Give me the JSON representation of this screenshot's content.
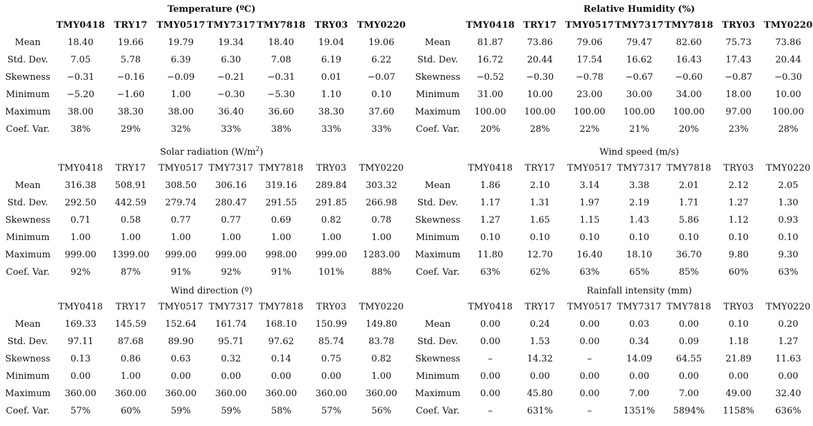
{
  "panels": [
    {
      "title": "Temperature (ºC)",
      "headers": [
        "TMY0418",
        "TRY17",
        "TMY0517",
        "TMY7317",
        "TMY7818",
        "TRY03",
        "TMY0220"
      ],
      "rows": [
        {
          "label": "Mean",
          "values": [
            "18.40",
            "19.66",
            "19.79",
            "19.34",
            "18.40",
            "19.04",
            "19.06"
          ]
        },
        {
          "label": "Std. Dev.",
          "values": [
            "7.05",
            "5.78",
            "6.39",
            "6.30",
            "7.08",
            "6.19",
            "6.22"
          ]
        },
        {
          "label": "Skewness",
          "values": [
            "−0.31",
            "−0.16",
            "−0.09",
            "−0.21",
            "−0.31",
            "0.01",
            "−0.07"
          ]
        },
        {
          "label": "Minimum",
          "values": [
            "−5.20",
            "−1.60",
            "1.00",
            "−0.30",
            "−5.30",
            "1.10",
            "0.10"
          ]
        },
        {
          "label": "Maximum",
          "values": [
            "38.00",
            "38.30",
            "38.00",
            "36.40",
            "36.60",
            "38.30",
            "37.60"
          ]
        },
        {
          "label": "Coef. Var.",
          "values": [
            "38%",
            "29%",
            "32%",
            "33%",
            "38%",
            "33%",
            "33%"
          ]
        }
      ]
    },
    {
      "title": "Relative Humidity (%)",
      "headers": [
        "TMY0418",
        "TRY17",
        "TMY0517",
        "TMY7317",
        "TMY7818",
        "TRY03",
        "TMY0220"
      ],
      "rows": [
        {
          "label": "Mean",
          "values": [
            "81.87",
            "73.86",
            "79.06",
            "79.47",
            "82.60",
            "75.73",
            "73.86"
          ]
        },
        {
          "label": "Std. Dev.",
          "values": [
            "16.72",
            "20.44",
            "17.54",
            "16.62",
            "16.43",
            "17.43",
            "20.44"
          ]
        },
        {
          "label": "Skewness",
          "values": [
            "−0.52",
            "−0.30",
            "−0.78",
            "−0.67",
            "−0.60",
            "−0.87",
            "−0.30"
          ]
        },
        {
          "label": "Minimum",
          "values": [
            "31.00",
            "10.00",
            "23.00",
            "30.00",
            "34.00",
            "18.00",
            "10.00"
          ]
        },
        {
          "label": "Maximum",
          "values": [
            "100.00",
            "100.00",
            "100.00",
            "100.00",
            "100.00",
            "97.00",
            "100.00"
          ]
        },
        {
          "label": "Coef. Var.",
          "values": [
            "20%",
            "28%",
            "22%",
            "21%",
            "20%",
            "23%",
            "28%"
          ]
        }
      ]
    },
    {
      "title": "Solar radiation (W/m",
      "title_sup": "2",
      "title_end": ")",
      "headers": [
        "TMY0418",
        "TRY17",
        "TMY0517",
        "TMY7317",
        "TMY7818",
        "TRY03",
        "TMY0220"
      ],
      "rows": [
        {
          "label": "Mean",
          "values": [
            "316.38",
            "508.91",
            "308.50",
            "306.16",
            "319.16",
            "289.84",
            "303.32"
          ]
        },
        {
          "label": "Std. Dev.",
          "values": [
            "292.50",
            "442.59",
            "279.74",
            "280.47",
            "291.55",
            "291.85",
            "266.98"
          ]
        },
        {
          "label": "Skewness",
          "values": [
            "0.71",
            "0.58",
            "0.77",
            "0.77",
            "0.69",
            "0.82",
            "0.78"
          ]
        },
        {
          "label": "Minimum",
          "values": [
            "1.00",
            "1.00",
            "1.00",
            "1.00",
            "1.00",
            "1.00",
            "1.00"
          ]
        },
        {
          "label": "Maximum",
          "values": [
            "999.00",
            "1399.00",
            "999.00",
            "999.00",
            "998.00",
            "999.00",
            "1283.00"
          ]
        },
        {
          "label": "Coef. Var.",
          "values": [
            "92%",
            "87%",
            "91%",
            "92%",
            "91%",
            "101%",
            "88%"
          ]
        }
      ]
    },
    {
      "title": "Wind speed (m/s)",
      "headers": [
        "TMY0418",
        "TRY17",
        "TMY0517",
        "TMY7317",
        "TMY7818",
        "TRY03",
        "TMY0220"
      ],
      "rows": [
        {
          "label": "Mean",
          "values": [
            "1.86",
            "2.10",
            "3.14",
            "3.38",
            "2.01",
            "2.12",
            "2.05"
          ]
        },
        {
          "label": "Std. Dev.",
          "values": [
            "1.17",
            "1.31",
            "1.97",
            "2.19",
            "1.71",
            "1.27",
            "1.30"
          ]
        },
        {
          "label": "Skewness",
          "values": [
            "1.27",
            "1.65",
            "1.15",
            "1.43",
            "5.86",
            "1.12",
            "0.93"
          ]
        },
        {
          "label": "Minimum",
          "values": [
            "0.10",
            "0.10",
            "0.10",
            "0.10",
            "0.10",
            "0.10",
            "0.10"
          ]
        },
        {
          "label": "Maximum",
          "values": [
            "11.80",
            "12.70",
            "16.40",
            "18.10",
            "36.70",
            "9.80",
            "9.30"
          ]
        },
        {
          "label": "Coef. Var.",
          "values": [
            "63%",
            "62%",
            "63%",
            "65%",
            "85%",
            "60%",
            "63%"
          ]
        }
      ]
    },
    {
      "title": "Wind direction (º)",
      "headers": [
        "TMY0418",
        "TRY17",
        "TMY0517",
        "TMY7317",
        "TMY7818",
        "TRY03",
        "TMY0220"
      ],
      "rows": [
        {
          "label": "Mean",
          "values": [
            "169.33",
            "145.59",
            "152.64",
            "161.74",
            "168.10",
            "150.99",
            "149.80"
          ]
        },
        {
          "label": "Std. Dev.",
          "values": [
            "97.11",
            "87.68",
            "89.90",
            "95.71",
            "97.62",
            "85.74",
            "83.78"
          ]
        },
        {
          "label": "Skewness",
          "values": [
            "0.13",
            "0.86",
            "0.63",
            "0.32",
            "0.14",
            "0.75",
            "0.82"
          ]
        },
        {
          "label": "Minimum",
          "values": [
            "0.00",
            "1.00",
            "0.00",
            "0.00",
            "0.00",
            "0.00",
            "1.00"
          ]
        },
        {
          "label": "Maximum",
          "values": [
            "360.00",
            "360.00",
            "360.00",
            "360.00",
            "360.00",
            "360.00",
            "360.00"
          ]
        },
        {
          "label": "Coef. Var.",
          "values": [
            "57%",
            "60%",
            "59%",
            "59%",
            "58%",
            "57%",
            "56%"
          ]
        }
      ]
    },
    {
      "title": "Rainfall intensity (mm)",
      "headers": [
        "TMY0418",
        "TRY17",
        "TMY0517",
        "TMY7317",
        "TMY7818",
        "TRY03",
        "TMY0220"
      ],
      "rows": [
        {
          "label": "Mean",
          "values": [
            "0.00",
            "0.24",
            "0.00",
            "0.03",
            "0.00",
            "0.10",
            "0.20"
          ]
        },
        {
          "label": "Std. Dev.",
          "values": [
            "0.00",
            "1.53",
            "0.00",
            "0.34",
            "0.09",
            "1.18",
            "1.27"
          ]
        },
        {
          "label": "Skewness",
          "values": [
            "–",
            "14.32",
            "–",
            "14.09",
            "64.55",
            "21.89",
            "11.63"
          ]
        },
        {
          "label": "Minimum",
          "values": [
            "0.00",
            "0.00",
            "0.00",
            "0.00",
            "0.00",
            "0.00",
            "0.00"
          ]
        },
        {
          "label": "Maximum",
          "values": [
            "0.00",
            "45.80",
            "0.00",
            "7.00",
            "7.00",
            "49.00",
            "32.40"
          ]
        },
        {
          "label": "Coef. Var.",
          "values": [
            "–",
            "631%",
            "–",
            "1351%",
            "5894%",
            "1158%",
            "636%"
          ]
        }
      ]
    }
  ]
}
